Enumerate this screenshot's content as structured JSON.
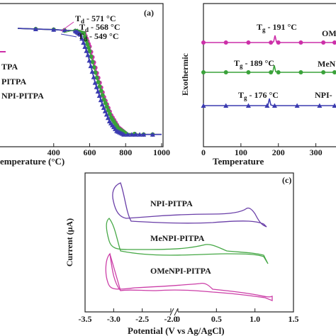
{
  "chart_data": [
    {
      "panel_label": "(a)",
      "type": "line",
      "xlabel": "Temperature (°C)",
      "xlabel_visible": "emperature (°C)",
      "x_ticks": [
        "400",
        "600",
        "800",
        "1000"
      ],
      "xlim": [
        200,
        1000
      ],
      "ylim": [
        0,
        100
      ],
      "legend_partial": [
        "TPA",
        "PITPA",
        "NPI-PITPA"
      ],
      "annotations": [
        {
          "text": "Td - 571 °C",
          "prefix": "T",
          "sub": "d",
          "rest": " - 571 °C"
        },
        {
          "text": "Td - 568 °C",
          "prefix": "T",
          "sub": "d",
          "rest": " - 568 °C"
        },
        {
          "text": "Td - 549 °C",
          "prefix": "T",
          "sub": "d",
          "rest": " - 549 °C"
        }
      ],
      "series": [
        {
          "color": "#cc2fa8",
          "marker": "circle",
          "x": [
            200,
            400,
            520,
            571,
            600,
            640,
            680,
            720,
            760,
            800,
            900,
            1000
          ],
          "y": [
            97,
            96,
            95,
            93,
            82,
            60,
            40,
            25,
            15,
            10,
            9,
            9
          ]
        },
        {
          "color": "#3aa23a",
          "marker": "circle",
          "x": [
            200,
            400,
            520,
            568,
            600,
            640,
            680,
            720,
            760,
            800,
            900,
            1000
          ],
          "y": [
            97,
            96,
            95,
            93,
            78,
            56,
            38,
            23,
            14,
            10,
            9,
            9
          ]
        },
        {
          "color": "#3b3bb0",
          "marker": "triangle",
          "x": [
            200,
            400,
            520,
            549,
            590,
            630,
            670,
            710,
            750,
            790,
            900,
            1000
          ],
          "y": [
            97,
            96,
            95,
            92,
            75,
            52,
            34,
            20,
            12,
            9,
            9,
            9
          ]
        }
      ]
    },
    {
      "panel_label": "",
      "type": "line",
      "xlabel": "Temperature (°C)",
      "xlabel_visible": "Temperature",
      "ylabel": "Exothermic",
      "x_ticks": [
        "0",
        "100",
        "200",
        "300"
      ],
      "xlim": [
        0,
        350
      ],
      "annotations": [
        {
          "prefix": "T",
          "sub": "g",
          "rest": " - 191 °C"
        },
        {
          "prefix": "T",
          "sub": "g",
          "rest": " - 189 °C"
        },
        {
          "prefix": "T",
          "sub": "g",
          "rest": " - 176 °C"
        }
      ],
      "series_labels_partial": [
        "OM",
        "MeN",
        "NPI-"
      ],
      "series": [
        {
          "color": "#cc2fa8",
          "marker": "circle",
          "tg": 191,
          "x": [
            0,
            60,
            120,
            180,
            191,
            200,
            260,
            320,
            350
          ]
        },
        {
          "color": "#3aa23a",
          "marker": "circle",
          "tg": 189,
          "x": [
            0,
            60,
            120,
            180,
            189,
            200,
            260,
            320,
            350
          ]
        },
        {
          "color": "#3b3bb0",
          "marker": "triangle",
          "tg": 176,
          "x": [
            0,
            60,
            120,
            170,
            176,
            190,
            250,
            310,
            350
          ]
        }
      ]
    },
    {
      "panel_label": "(c)",
      "type": "line",
      "xlabel": "Potential (V vs Ag/AgCl)",
      "ylabel": "Current (µA)",
      "x_ticks": [
        "-3.5",
        "-3.0",
        "-2.5",
        "-2.0",
        "0",
        "0.5",
        "1.0",
        "1.5"
      ],
      "x_break": true,
      "series": [
        {
          "name": "NPI-PITPA",
          "color": "#6a3fa8"
        },
        {
          "name": "MeNPI-PITPA",
          "color": "#46a846"
        },
        {
          "name": "OMeNPI-PITPA",
          "color": "#cc3fa8"
        }
      ]
    }
  ]
}
